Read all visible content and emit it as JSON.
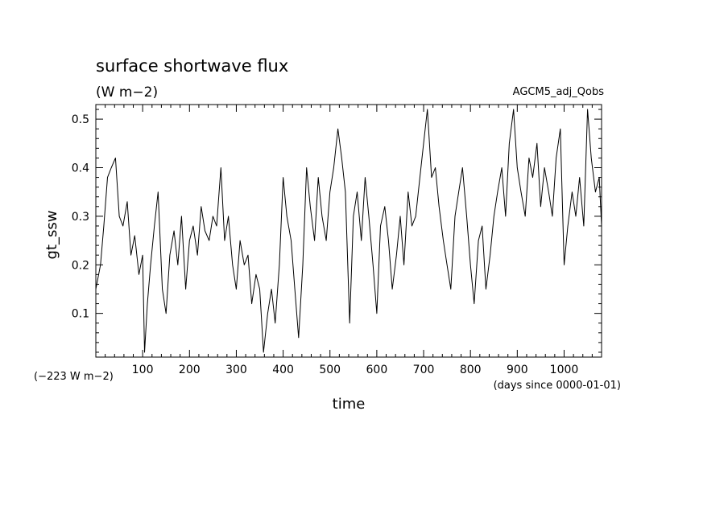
{
  "chart_data": {
    "type": "line",
    "title": "surface shortwave flux",
    "units": "(W m−2)",
    "experiment": "AGCM5_adj_Qobs",
    "ylabel": "gt_ssw",
    "xlabel": "time",
    "offset_note": "(−223 W m−2)",
    "x_unit_note": "(days since 0000-01-01)",
    "xlim": [
      0,
      1080
    ],
    "ylim": [
      0.01,
      0.53
    ],
    "x_ticks": [
      100,
      200,
      300,
      400,
      500,
      600,
      700,
      800,
      900,
      1000
    ],
    "y_ticks": [
      0.1,
      0.2,
      0.3,
      0.4,
      0.5
    ],
    "y_tick_labels": [
      "0.1",
      "0.2",
      "0.3",
      "0.4",
      "0.5"
    ],
    "grid": false,
    "series": [
      {
        "x": [
          0,
          10,
          17,
          25,
          33,
          42,
          50,
          58,
          67,
          75,
          83,
          92,
          100,
          104,
          110,
          117,
          125,
          133,
          142,
          150,
          158,
          167,
          175,
          183,
          192,
          200,
          208,
          217,
          225,
          233,
          242,
          250,
          258,
          267,
          275,
          283,
          292,
          300,
          308,
          317,
          325,
          333,
          342,
          350,
          358,
          367,
          375,
          383,
          392,
          400,
          408,
          417,
          425,
          433,
          442,
          450,
          458,
          467,
          475,
          483,
          492,
          500,
          508,
          517,
          525,
          533,
          542,
          550,
          558,
          567,
          575,
          583,
          592,
          600,
          608,
          617,
          625,
          633,
          642,
          650,
          658,
          667,
          675,
          683,
          692,
          700,
          708,
          717,
          725,
          733,
          742,
          750,
          758,
          767,
          775,
          783,
          792,
          800,
          808,
          817,
          825,
          833,
          842,
          850,
          858,
          867,
          875,
          883,
          892,
          900,
          908,
          917,
          925,
          933,
          942,
          950,
          958,
          967,
          975,
          983,
          992,
          1000,
          1008,
          1017,
          1025,
          1033,
          1042,
          1050,
          1058,
          1067,
          1075,
          1080
        ],
        "y": [
          0.15,
          0.2,
          0.28,
          0.38,
          0.4,
          0.42,
          0.3,
          0.28,
          0.33,
          0.22,
          0.26,
          0.18,
          0.22,
          0.02,
          0.12,
          0.2,
          0.28,
          0.35,
          0.15,
          0.1,
          0.22,
          0.27,
          0.2,
          0.3,
          0.15,
          0.25,
          0.28,
          0.22,
          0.32,
          0.27,
          0.25,
          0.3,
          0.28,
          0.4,
          0.25,
          0.3,
          0.2,
          0.15,
          0.25,
          0.2,
          0.22,
          0.12,
          0.18,
          0.15,
          0.02,
          0.1,
          0.15,
          0.08,
          0.2,
          0.38,
          0.3,
          0.25,
          0.15,
          0.05,
          0.2,
          0.4,
          0.32,
          0.25,
          0.38,
          0.3,
          0.25,
          0.35,
          0.4,
          0.48,
          0.42,
          0.35,
          0.08,
          0.3,
          0.35,
          0.25,
          0.38,
          0.3,
          0.2,
          0.1,
          0.28,
          0.32,
          0.25,
          0.15,
          0.22,
          0.3,
          0.2,
          0.35,
          0.28,
          0.3,
          0.38,
          0.45,
          0.52,
          0.38,
          0.4,
          0.32,
          0.25,
          0.2,
          0.15,
          0.3,
          0.35,
          0.4,
          0.3,
          0.2,
          0.12,
          0.25,
          0.28,
          0.15,
          0.22,
          0.3,
          0.35,
          0.4,
          0.3,
          0.45,
          0.52,
          0.4,
          0.35,
          0.3,
          0.42,
          0.38,
          0.45,
          0.32,
          0.4,
          0.35,
          0.3,
          0.42,
          0.48,
          0.2,
          0.28,
          0.35,
          0.3,
          0.38,
          0.28,
          0.52,
          0.42,
          0.35,
          0.38,
          0.28
        ]
      }
    ]
  }
}
